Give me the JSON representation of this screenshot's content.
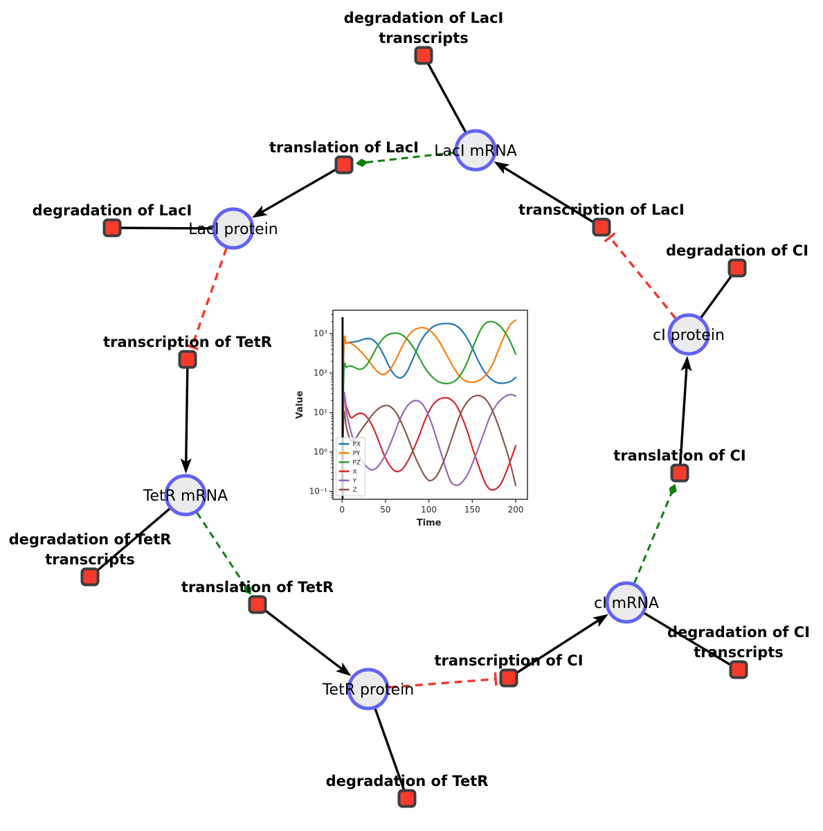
{
  "diagram": {
    "species": [
      {
        "id": "laci_mrna",
        "label": "LacI mRNA"
      },
      {
        "id": "laci_protein",
        "label": "LacI protein"
      },
      {
        "id": "ci_protein",
        "label": "cI protein"
      },
      {
        "id": "tetr_mrna",
        "label": "TetR mRNA"
      },
      {
        "id": "tetr_protein",
        "label": "TetR protein"
      },
      {
        "id": "ci_mrna",
        "label": "cI mRNA"
      }
    ],
    "reactions": [
      {
        "id": "deg_laci_tx",
        "label_lines": [
          "degradation of LacI",
          "transcripts"
        ]
      },
      {
        "id": "transl_laci",
        "label_lines": [
          "translation of LacI"
        ]
      },
      {
        "id": "deg_laci",
        "label_lines": [
          "degradation of LacI"
        ]
      },
      {
        "id": "txn_laci",
        "label_lines": [
          "transcription of LacI"
        ]
      },
      {
        "id": "deg_ci",
        "label_lines": [
          "degradation of CI"
        ]
      },
      {
        "id": "txn_tetr",
        "label_lines": [
          "transcription of TetR"
        ]
      },
      {
        "id": "deg_tetr_tx",
        "label_lines": [
          "degradation of TetR",
          "transcripts"
        ]
      },
      {
        "id": "transl_tetr",
        "label_lines": [
          "translation of TetR"
        ]
      },
      {
        "id": "deg_tetr",
        "label_lines": [
          "degradation of TetR"
        ]
      },
      {
        "id": "txn_ci",
        "label_lines": [
          "transcription of CI"
        ]
      },
      {
        "id": "deg_ci_tx",
        "label_lines": [
          "degradation of CI",
          "transcripts"
        ]
      },
      {
        "id": "transl_ci",
        "label_lines": [
          "translation of CI"
        ]
      }
    ],
    "edges": [
      {
        "from": "laci_mrna",
        "to": "deg_laci_tx",
        "type": "consumption"
      },
      {
        "from": "laci_mrna",
        "to": "transl_laci",
        "type": "modifier"
      },
      {
        "from": "transl_laci",
        "to": "laci_protein",
        "type": "production"
      },
      {
        "from": "laci_protein",
        "to": "deg_laci",
        "type": "consumption"
      },
      {
        "from": "laci_protein",
        "to": "txn_tetr",
        "type": "inhibition"
      },
      {
        "from": "txn_tetr",
        "to": "tetr_mrna",
        "type": "production"
      },
      {
        "from": "tetr_mrna",
        "to": "deg_tetr_tx",
        "type": "consumption"
      },
      {
        "from": "tetr_mrna",
        "to": "transl_tetr",
        "type": "modifier"
      },
      {
        "from": "transl_tetr",
        "to": "tetr_protein",
        "type": "production"
      },
      {
        "from": "tetr_protein",
        "to": "deg_tetr",
        "type": "consumption"
      },
      {
        "from": "tetr_protein",
        "to": "txn_ci",
        "type": "inhibition"
      },
      {
        "from": "txn_ci",
        "to": "ci_mrna",
        "type": "production"
      },
      {
        "from": "ci_mrna",
        "to": "deg_ci_tx",
        "type": "consumption"
      },
      {
        "from": "ci_mrna",
        "to": "transl_ci",
        "type": "modifier"
      },
      {
        "from": "transl_ci",
        "to": "ci_protein",
        "type": "production"
      },
      {
        "from": "ci_protein",
        "to": "deg_ci",
        "type": "consumption"
      },
      {
        "from": "ci_protein",
        "to": "txn_laci",
        "type": "inhibition"
      },
      {
        "from": "txn_laci",
        "to": "laci_mrna",
        "type": "production"
      }
    ],
    "colors": {
      "species_fill": "#ebebee",
      "species_stroke": "#6363f2",
      "reaction_fill": "#f63b2d",
      "reaction_stroke": "#3d3d3d",
      "edge_black": "#000000",
      "edge_modifier": "#0e7f0e",
      "edge_inhibition": "#f4392e",
      "label_color": "#000000"
    }
  },
  "chart_data": {
    "type": "line",
    "title": "",
    "xlabel": "Time",
    "ylabel": "Value",
    "y_scale": "log",
    "grid": false,
    "legend_position": "lower left",
    "xlim": [
      -10.5,
      213.5
    ],
    "ylim_log10": [
      -1.2,
      3.59
    ],
    "x_ticks": [
      0,
      50,
      100,
      150,
      200
    ],
    "y_tick_exponents": [
      3,
      2,
      1,
      0,
      -1
    ],
    "y_tick_labels": [
      "10³",
      "10²",
      "10¹",
      "10⁰",
      "10⁻¹"
    ],
    "annotations": [
      {
        "type": "vline",
        "x": 0.6,
        "color": "#000000"
      }
    ],
    "x": [
      0,
      2,
      5,
      10,
      15,
      20,
      25,
      30,
      35,
      40,
      45,
      50,
      55,
      60,
      65,
      70,
      75,
      80,
      85,
      90,
      95,
      100,
      105,
      110,
      115,
      120,
      125,
      130,
      135,
      140,
      145,
      150,
      155,
      160,
      165,
      170,
      175,
      180,
      185,
      190,
      195,
      200
    ],
    "series": [
      {
        "name": "PX",
        "color": "#1f77b4",
        "values": [
          0.1,
          350,
          560,
          600,
          620,
          660,
          720,
          745,
          700,
          560,
          380,
          230,
          135,
          92,
          76,
          80,
          110,
          190,
          340,
          600,
          900,
          1200,
          1500,
          1670,
          1760,
          1800,
          1770,
          1640,
          1390,
          1040,
          700,
          430,
          250,
          150,
          100,
          75,
          62,
          56,
          55,
          57,
          63,
          78
        ]
      },
      {
        "name": "PY",
        "color": "#ff7f0e",
        "values": [
          0.1,
          420,
          560,
          565,
          480,
          380,
          290,
          215,
          152,
          112,
          93,
          95,
          122,
          180,
          300,
          500,
          790,
          1090,
          1290,
          1400,
          1380,
          1250,
          1000,
          720,
          480,
          300,
          190,
          121,
          86,
          67,
          60,
          58,
          61,
          69,
          86,
          122,
          200,
          380,
          700,
          1200,
          1800,
          2200
        ]
      },
      {
        "name": "PZ",
        "color": "#2ca02c",
        "values": [
          0.1,
          95,
          138,
          150,
          136,
          124,
          134,
          180,
          278,
          450,
          650,
          850,
          975,
          1020,
          1000,
          895,
          715,
          520,
          350,
          220,
          140,
          98,
          75,
          62,
          56,
          54,
          56,
          63,
          81,
          121,
          210,
          400,
          750,
          1300,
          1800,
          2000,
          1950,
          1690,
          1300,
          890,
          540,
          300
        ]
      },
      {
        "name": "X",
        "color": "#d62728",
        "values": [
          0.12,
          20,
          14,
          7.5,
          8.4,
          9.5,
          9.1,
          7.0,
          4.5,
          2.5,
          1.3,
          0.7,
          0.45,
          0.34,
          0.32,
          0.38,
          0.55,
          0.9,
          1.6,
          3.0,
          6.0,
          10.5,
          16,
          20.5,
          23,
          23.5,
          21.5,
          17,
          11,
          6.0,
          3.0,
          1.3,
          0.62,
          0.3,
          0.16,
          0.115,
          0.11,
          0.13,
          0.19,
          0.35,
          0.7,
          1.45
        ]
      },
      {
        "name": "Y",
        "color": "#9467bd",
        "values": [
          0.12,
          26,
          10,
          3.4,
          1.5,
          0.8,
          0.52,
          0.39,
          0.35,
          0.4,
          0.55,
          0.85,
          1.5,
          2.8,
          5.5,
          9.5,
          14.5,
          18.5,
          20,
          18.5,
          13.5,
          8.0,
          4.0,
          1.8,
          0.8,
          0.35,
          0.18,
          0.145,
          0.15,
          0.19,
          0.28,
          0.5,
          0.95,
          1.9,
          3.8,
          7.5,
          12.5,
          18,
          23,
          27,
          28.5,
          26
        ]
      },
      {
        "name": "Z",
        "color": "#8c564b",
        "values": [
          0.12,
          9,
          4.2,
          1.9,
          2.1,
          3.1,
          4.4,
          6.3,
          8.8,
          11.5,
          13.8,
          15,
          14.2,
          11.5,
          7.8,
          4.6,
          2.5,
          1.3,
          0.68,
          0.4,
          0.25,
          0.19,
          0.2,
          0.27,
          0.45,
          0.85,
          1.8,
          3.8,
          7.8,
          13.5,
          19.5,
          24.5,
          26.8,
          26,
          22,
          15.5,
          9.0,
          4.6,
          2.2,
          1.0,
          0.4,
          0.14
        ]
      }
    ]
  }
}
